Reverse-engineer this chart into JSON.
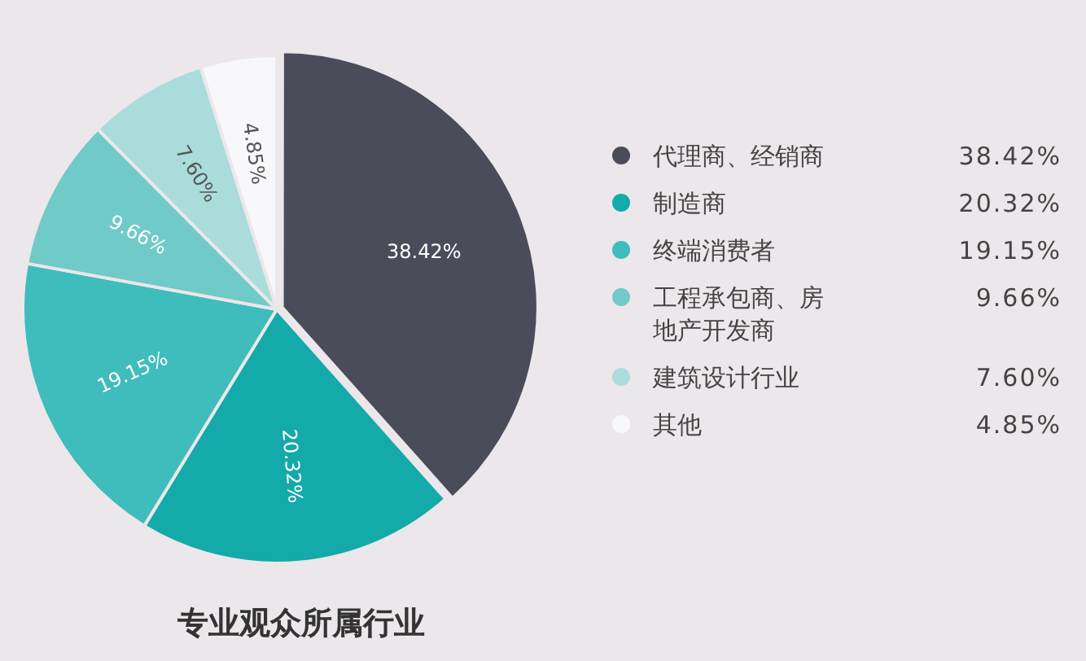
{
  "chart_data": {
    "type": "pie",
    "title": "专业观众所属行业",
    "categories": [
      "代理商、经销商",
      "制造商",
      "终端消费者",
      "工程承包商、房地产开发商",
      "建筑设计行业",
      "其他"
    ],
    "values": [
      38.42,
      20.32,
      19.15,
      9.66,
      7.6,
      4.85
    ],
    "colors": [
      "#4b4c5a",
      "#13aaa9",
      "#3fbcbc",
      "#70cac7",
      "#a9dcda",
      "#f8f8fa"
    ],
    "value_labels": [
      "38.42%",
      "20.32%",
      "19.15%",
      "9.66%",
      "7.60%",
      "4.85%"
    ],
    "legend": "right"
  }
}
